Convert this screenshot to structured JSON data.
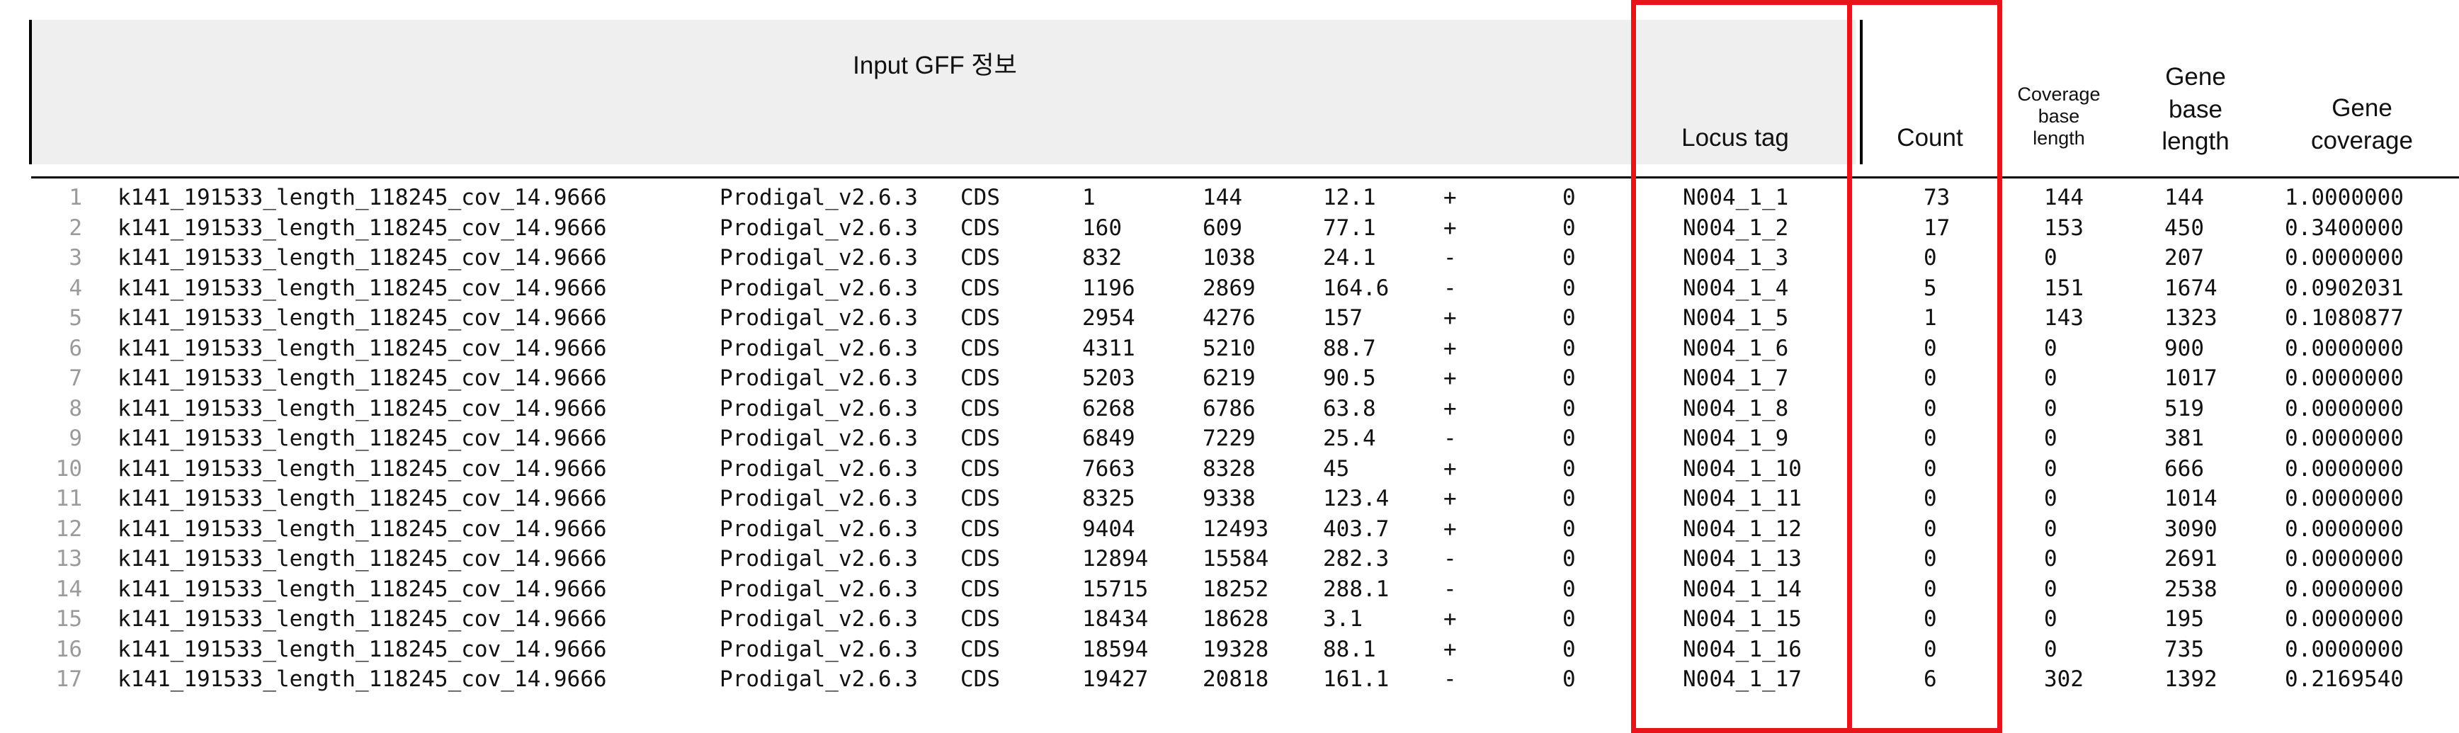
{
  "header": {
    "input_gff": "Input GFF 정보",
    "locus_tag": "Locus tag",
    "count": "Count",
    "coverage_base_length": [
      "Coverage",
      "base",
      "length"
    ],
    "gene_base_length": [
      "Gene",
      "base",
      "length"
    ],
    "gene_coverage": [
      "Gene",
      "coverage"
    ]
  },
  "colors": {
    "highlight": "#e8141b",
    "header_bg": "#efefef",
    "line_number": "#9a9a9a"
  },
  "rows": [
    {
      "n": "1",
      "seqid": "k141_191533_length_118245_cov_14.9666",
      "source": "Prodigal_v2.6.3",
      "type": "CDS",
      "start": "1",
      "end": "144",
      "score": "12.1",
      "strand": "+",
      "phase": "0",
      "locus": "N004_1_1",
      "count": "73",
      "cov_len": "144",
      "gene_len": "144",
      "coverage": "1.0000000"
    },
    {
      "n": "2",
      "seqid": "k141_191533_length_118245_cov_14.9666",
      "source": "Prodigal_v2.6.3",
      "type": "CDS",
      "start": "160",
      "end": "609",
      "score": "77.1",
      "strand": "+",
      "phase": "0",
      "locus": "N004_1_2",
      "count": "17",
      "cov_len": "153",
      "gene_len": "450",
      "coverage": "0.3400000"
    },
    {
      "n": "3",
      "seqid": "k141_191533_length_118245_cov_14.9666",
      "source": "Prodigal_v2.6.3",
      "type": "CDS",
      "start": "832",
      "end": "1038",
      "score": "24.1",
      "strand": "-",
      "phase": "0",
      "locus": "N004_1_3",
      "count": "0",
      "cov_len": "0",
      "gene_len": "207",
      "coverage": "0.0000000"
    },
    {
      "n": "4",
      "seqid": "k141_191533_length_118245_cov_14.9666",
      "source": "Prodigal_v2.6.3",
      "type": "CDS",
      "start": "1196",
      "end": "2869",
      "score": "164.6",
      "strand": "-",
      "phase": "0",
      "locus": "N004_1_4",
      "count": "5",
      "cov_len": "151",
      "gene_len": "1674",
      "coverage": "0.0902031"
    },
    {
      "n": "5",
      "seqid": "k141_191533_length_118245_cov_14.9666",
      "source": "Prodigal_v2.6.3",
      "type": "CDS",
      "start": "2954",
      "end": "4276",
      "score": "157",
      "strand": "+",
      "phase": "0",
      "locus": "N004_1_5",
      "count": "1",
      "cov_len": "143",
      "gene_len": "1323",
      "coverage": "0.1080877"
    },
    {
      "n": "6",
      "seqid": "k141_191533_length_118245_cov_14.9666",
      "source": "Prodigal_v2.6.3",
      "type": "CDS",
      "start": "4311",
      "end": "5210",
      "score": "88.7",
      "strand": "+",
      "phase": "0",
      "locus": "N004_1_6",
      "count": "0",
      "cov_len": "0",
      "gene_len": "900",
      "coverage": "0.0000000"
    },
    {
      "n": "7",
      "seqid": "k141_191533_length_118245_cov_14.9666",
      "source": "Prodigal_v2.6.3",
      "type": "CDS",
      "start": "5203",
      "end": "6219",
      "score": "90.5",
      "strand": "+",
      "phase": "0",
      "locus": "N004_1_7",
      "count": "0",
      "cov_len": "0",
      "gene_len": "1017",
      "coverage": "0.0000000"
    },
    {
      "n": "8",
      "seqid": "k141_191533_length_118245_cov_14.9666",
      "source": "Prodigal_v2.6.3",
      "type": "CDS",
      "start": "6268",
      "end": "6786",
      "score": "63.8",
      "strand": "+",
      "phase": "0",
      "locus": "N004_1_8",
      "count": "0",
      "cov_len": "0",
      "gene_len": "519",
      "coverage": "0.0000000"
    },
    {
      "n": "9",
      "seqid": "k141_191533_length_118245_cov_14.9666",
      "source": "Prodigal_v2.6.3",
      "type": "CDS",
      "start": "6849",
      "end": "7229",
      "score": "25.4",
      "strand": "-",
      "phase": "0",
      "locus": "N004_1_9",
      "count": "0",
      "cov_len": "0",
      "gene_len": "381",
      "coverage": "0.0000000"
    },
    {
      "n": "10",
      "seqid": "k141_191533_length_118245_cov_14.9666",
      "source": "Prodigal_v2.6.3",
      "type": "CDS",
      "start": "7663",
      "end": "8328",
      "score": "45",
      "strand": "+",
      "phase": "0",
      "locus": "N004_1_10",
      "count": "0",
      "cov_len": "0",
      "gene_len": "666",
      "coverage": "0.0000000"
    },
    {
      "n": "11",
      "seqid": "k141_191533_length_118245_cov_14.9666",
      "source": "Prodigal_v2.6.3",
      "type": "CDS",
      "start": "8325",
      "end": "9338",
      "score": "123.4",
      "strand": "+",
      "phase": "0",
      "locus": "N004_1_11",
      "count": "0",
      "cov_len": "0",
      "gene_len": "1014",
      "coverage": "0.0000000"
    },
    {
      "n": "12",
      "seqid": "k141_191533_length_118245_cov_14.9666",
      "source": "Prodigal_v2.6.3",
      "type": "CDS",
      "start": "9404",
      "end": "12493",
      "score": "403.7",
      "strand": "+",
      "phase": "0",
      "locus": "N004_1_12",
      "count": "0",
      "cov_len": "0",
      "gene_len": "3090",
      "coverage": "0.0000000"
    },
    {
      "n": "13",
      "seqid": "k141_191533_length_118245_cov_14.9666",
      "source": "Prodigal_v2.6.3",
      "type": "CDS",
      "start": "12894",
      "end": "15584",
      "score": "282.3",
      "strand": "-",
      "phase": "0",
      "locus": "N004_1_13",
      "count": "0",
      "cov_len": "0",
      "gene_len": "2691",
      "coverage": "0.0000000"
    },
    {
      "n": "14",
      "seqid": "k141_191533_length_118245_cov_14.9666",
      "source": "Prodigal_v2.6.3",
      "type": "CDS",
      "start": "15715",
      "end": "18252",
      "score": "288.1",
      "strand": "-",
      "phase": "0",
      "locus": "N004_1_14",
      "count": "0",
      "cov_len": "0",
      "gene_len": "2538",
      "coverage": "0.0000000"
    },
    {
      "n": "15",
      "seqid": "k141_191533_length_118245_cov_14.9666",
      "source": "Prodigal_v2.6.3",
      "type": "CDS",
      "start": "18434",
      "end": "18628",
      "score": "3.1",
      "strand": "+",
      "phase": "0",
      "locus": "N004_1_15",
      "count": "0",
      "cov_len": "0",
      "gene_len": "195",
      "coverage": "0.0000000"
    },
    {
      "n": "16",
      "seqid": "k141_191533_length_118245_cov_14.9666",
      "source": "Prodigal_v2.6.3",
      "type": "CDS",
      "start": "18594",
      "end": "19328",
      "score": "88.1",
      "strand": "+",
      "phase": "0",
      "locus": "N004_1_16",
      "count": "0",
      "cov_len": "0",
      "gene_len": "735",
      "coverage": "0.0000000"
    },
    {
      "n": "17",
      "seqid": "k141_191533_length_118245_cov_14.9666",
      "source": "Prodigal_v2.6.3",
      "type": "CDS",
      "start": "19427",
      "end": "20818",
      "score": "161.1",
      "strand": "-",
      "phase": "0",
      "locus": "N004_1_17",
      "count": "6",
      "cov_len": "302",
      "gene_len": "1392",
      "coverage": "0.2169540"
    }
  ]
}
